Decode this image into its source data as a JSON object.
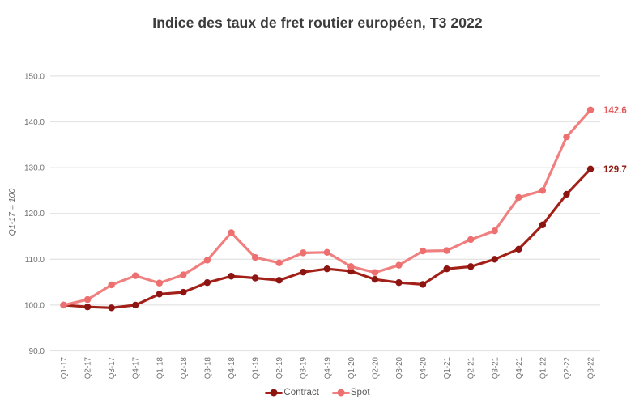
{
  "page": {
    "background": "#ffffff"
  },
  "chart_data": {
    "type": "line",
    "title": "Indice des taux de fret routier européen, T3 2022",
    "ylabel": "Q1-17 = 100",
    "xlabel": "",
    "categories": [
      "Q1-17",
      "Q2-17",
      "Q3-17",
      "Q4-17",
      "Q1-18",
      "Q2-18",
      "Q3-18",
      "Q4-18",
      "Q1-19",
      "Q2-19",
      "Q3-19",
      "Q4-19",
      "Q1-20",
      "Q2-20",
      "Q3-20",
      "Q4-20",
      "Q1-21",
      "Q2-21",
      "Q3-21",
      "Q4-21",
      "Q1-22",
      "Q2-22",
      "Q3-22"
    ],
    "series": [
      {
        "name": "Contract",
        "color": "#A32019",
        "marker_color": "#8C1512",
        "label_color": "#8F180F",
        "end_label": "129.7",
        "values": [
          100.0,
          99.6,
          99.4,
          100.0,
          102.4,
          102.8,
          104.9,
          106.3,
          105.9,
          105.4,
          107.2,
          107.9,
          107.4,
          105.6,
          104.9,
          104.5,
          107.9,
          108.4,
          110.0,
          112.2,
          117.5,
          124.2,
          129.7
        ]
      },
      {
        "name": "Spot",
        "color": "#F08080",
        "marker_color": "#ED6F6F",
        "label_color": "#E35D5D",
        "end_label": "142.6",
        "values": [
          100.0,
          101.2,
          104.4,
          106.4,
          104.8,
          106.6,
          109.8,
          115.8,
          110.4,
          109.2,
          111.4,
          111.5,
          108.4,
          107.1,
          108.7,
          111.8,
          111.9,
          114.3,
          116.2,
          123.5,
          125.0,
          136.7,
          142.6
        ]
      }
    ],
    "ylim": [
      90,
      150
    ],
    "y_ticks": [
      90,
      100,
      110,
      120,
      130,
      140,
      150
    ],
    "y_tick_labels": [
      "90.0",
      "100.0",
      "110.0",
      "120.0",
      "130.0",
      "140.0",
      "150.0"
    ],
    "grid": true,
    "legend_position": "bottom",
    "colors": {
      "grid": "#e4e4e4",
      "tick_text": "#6f6f6f",
      "title_text": "#3b3b3b",
      "legend_text": "#595959"
    }
  }
}
